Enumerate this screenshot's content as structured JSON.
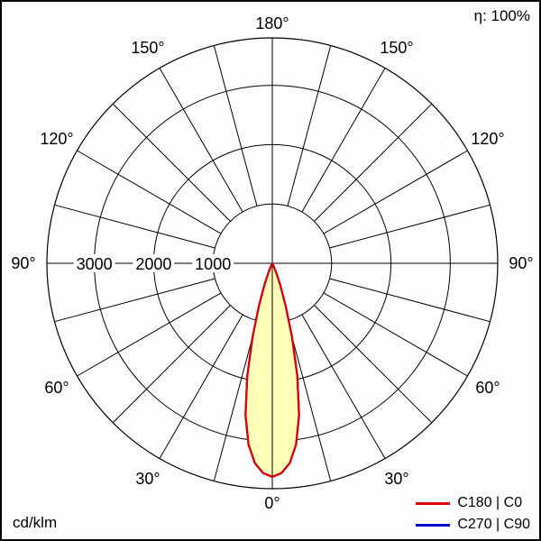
{
  "chart_data": {
    "type": "polar",
    "subtype": "photometric-light-distribution",
    "efficiency_label": "η: 100%",
    "units_label": "cd/klm",
    "angle_ticks_deg": [
      0,
      30,
      60,
      90,
      120,
      150,
      180
    ],
    "angle_tick_labels": [
      "0°",
      "30°",
      "60°",
      "90°",
      "120°",
      "150°",
      "180°"
    ],
    "minor_spoke_step_deg": 15,
    "radial_rings": [
      1000,
      2000,
      3000
    ],
    "radial_ring_labels": [
      "1000",
      "2000",
      "3000"
    ],
    "outer_ring_value": 3800,
    "grid_color": "#000000",
    "beam_fill_color": "#ffffb8",
    "legend_position": "bottom-right",
    "legend": [
      {
        "label": "C180 | C0",
        "color": "#dd0000"
      },
      {
        "label": "C270 | C90",
        "color": "#0000cc"
      }
    ],
    "series": [
      {
        "name": "C270 | C90",
        "color": "#0000cc",
        "fill": "none",
        "gamma_deg": [
          -30,
          -27.5,
          -25,
          -22.5,
          -20,
          -17.5,
          -15,
          -12.5,
          -10,
          -7.5,
          -5,
          -2.5,
          0,
          2.5,
          5,
          7.5,
          10,
          12.5,
          15,
          17.5,
          20,
          22.5,
          25,
          27.5,
          30
        ],
        "cd_per_klm": [
          0,
          25,
          70,
          170,
          380,
          750,
          1280,
          1950,
          2600,
          3080,
          3380,
          3540,
          3600,
          3540,
          3380,
          3080,
          2600,
          1950,
          1280,
          750,
          380,
          170,
          70,
          25,
          0
        ]
      },
      {
        "name": "C180 | C0",
        "color": "#dd0000",
        "fill": "#ffffb8",
        "gamma_deg": [
          -30,
          -27.5,
          -25,
          -22.5,
          -20,
          -17.5,
          -15,
          -12.5,
          -10,
          -7.5,
          -5,
          -2.5,
          0,
          2.5,
          5,
          7.5,
          10,
          12.5,
          15,
          17.5,
          20,
          22.5,
          25,
          27.5,
          30
        ],
        "cd_per_klm": [
          0,
          25,
          70,
          170,
          380,
          750,
          1280,
          1950,
          2600,
          3080,
          3380,
          3540,
          3600,
          3540,
          3380,
          3080,
          2600,
          1950,
          1280,
          750,
          380,
          170,
          70,
          25,
          0
        ]
      }
    ]
  }
}
